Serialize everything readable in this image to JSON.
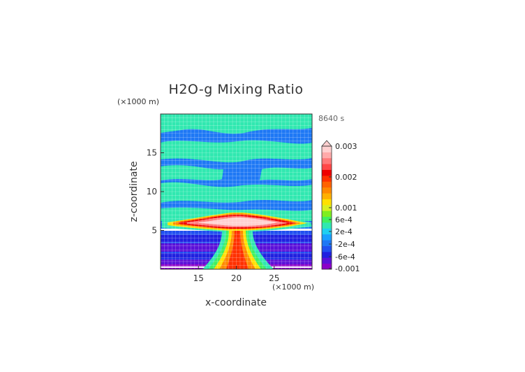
{
  "chart_data": {
    "type": "heatmap",
    "title": "H2O-g Mixing Ratio",
    "time_label": "8640 s",
    "xlabel": "x-coordinate",
    "ylabel": "z-coordinate",
    "x_unit": "(×1000 m)",
    "y_unit": "(×1000 m)",
    "xlim": [
      10,
      30
    ],
    "ylim": [
      0,
      20
    ],
    "xticks": [
      "15",
      "20",
      "25"
    ],
    "yticks": [
      "5",
      "10",
      "15"
    ],
    "grid": true,
    "colorbar": {
      "tick_labels": [
        "0.003",
        "0.002",
        "0.001",
        "6e-4",
        "2e-4",
        "-2e-4",
        "-6e-4",
        "-0.001"
      ],
      "colors": [
        "#8b00c8",
        "#5a10d8",
        "#2020e0",
        "#2050f0",
        "#1e78f5",
        "#1aa0ff",
        "#20d0f0",
        "#30e8b0",
        "#40f060",
        "#7fee20",
        "#d8f020",
        "#ffe000",
        "#ffb000",
        "#ff8800",
        "#ff6200",
        "#ff3000",
        "#ee0000",
        "#ff4848",
        "#ff7a7a",
        "#ffaaaa",
        "#ffd0d0"
      ]
    }
  }
}
